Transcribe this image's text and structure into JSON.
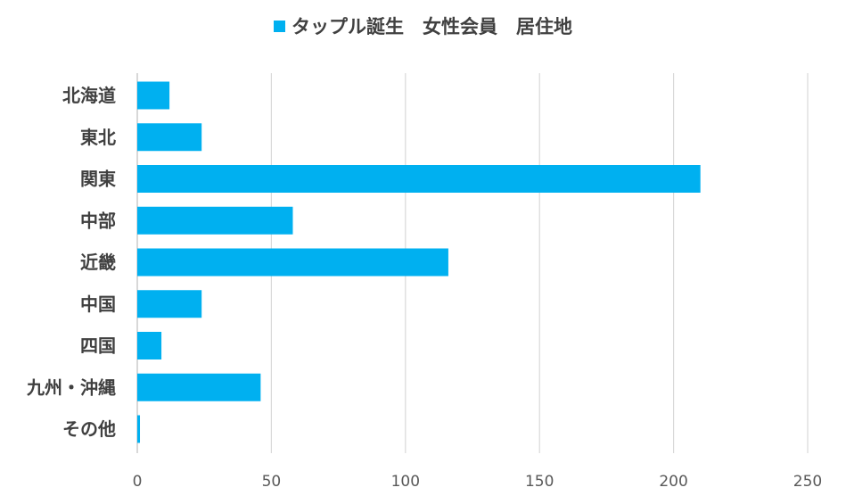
{
  "chart_data": {
    "type": "bar",
    "orientation": "horizontal",
    "categories": [
      "北海道",
      "東北",
      "関東",
      "中部",
      "近畿",
      "中国",
      "四国",
      "九州・沖縄",
      "その他"
    ],
    "series": [
      {
        "name": "タップル誕生　女性会員　居住地",
        "values": [
          12,
          24,
          210,
          58,
          116,
          24,
          9,
          46,
          1
        ]
      }
    ],
    "xlim": [
      0,
      250
    ],
    "xticks": [
      0,
      50,
      100,
      150,
      200,
      250
    ],
    "grid": "vertical",
    "legend_position": "top-center",
    "bar_color": "#00B0F0"
  }
}
